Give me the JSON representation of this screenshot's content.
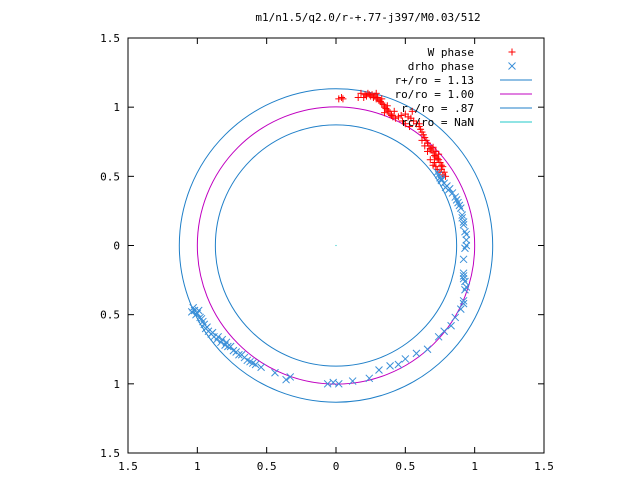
{
  "chart_data": {
    "type": "scatter",
    "title": "m1/n1.5/q2.0/r-+.77-j397/M0.03/512",
    "xlabel": "",
    "ylabel": "",
    "xlim": [
      -1.5,
      1.5
    ],
    "ylim": [
      -1.5,
      1.5
    ],
    "x_ticks": [
      -1.5,
      -1,
      -0.5,
      0,
      0.5,
      1,
      1.5
    ],
    "y_ticks": [
      -1.5,
      -1,
      -0.5,
      0,
      0.5,
      1,
      1.5
    ],
    "x_tick_labels": [
      "1.5",
      "1",
      "0.5",
      "0",
      "0.5",
      "1",
      "1.5"
    ],
    "y_tick_labels": [
      "1.5",
      "1",
      "0.5",
      "0",
      "0.5",
      "1",
      "1.5"
    ],
    "grid": false,
    "legend_position": "top-right",
    "series": [
      {
        "name": "W phase",
        "marker": "+",
        "color": "#ff0000",
        "points": [
          [
            0.02,
            1.06
          ],
          [
            0.04,
            1.07
          ],
          [
            0.05,
            1.06
          ],
          [
            0.16,
            1.07
          ],
          [
            0.18,
            1.1
          ],
          [
            0.2,
            1.07
          ],
          [
            0.21,
            1.09
          ],
          [
            0.22,
            1.08
          ],
          [
            0.23,
            1.1
          ],
          [
            0.24,
            1.09
          ],
          [
            0.25,
            1.08
          ],
          [
            0.26,
            1.09
          ],
          [
            0.27,
            1.07
          ],
          [
            0.28,
            1.08
          ],
          [
            0.29,
            1.06
          ],
          [
            0.3,
            1.07
          ],
          [
            0.31,
            1.05
          ],
          [
            0.32,
            1.04
          ],
          [
            0.33,
            1.03
          ],
          [
            0.34,
            1.02
          ],
          [
            0.35,
            1.0
          ],
          [
            0.36,
            0.99
          ],
          [
            0.37,
            0.98
          ],
          [
            0.38,
            0.97
          ],
          [
            0.39,
            0.95
          ],
          [
            0.4,
            0.94
          ],
          [
            0.41,
            0.93
          ],
          [
            0.43,
            0.92
          ],
          [
            0.45,
            0.93
          ],
          [
            0.47,
            0.94
          ],
          [
            0.5,
            0.95
          ],
          [
            0.52,
            0.93
          ],
          [
            0.54,
            0.92
          ],
          [
            0.56,
            0.9
          ],
          [
            0.58,
            0.88
          ],
          [
            0.6,
            0.86
          ],
          [
            0.61,
            0.84
          ],
          [
            0.62,
            0.82
          ],
          [
            0.63,
            0.8
          ],
          [
            0.64,
            0.78
          ],
          [
            0.65,
            0.76
          ],
          [
            0.66,
            0.74
          ],
          [
            0.67,
            0.72
          ],
          [
            0.68,
            0.7
          ],
          [
            0.69,
            0.69
          ],
          [
            0.7,
            0.67
          ],
          [
            0.71,
            0.65
          ],
          [
            0.72,
            0.64
          ],
          [
            0.73,
            0.63
          ],
          [
            0.74,
            0.62
          ],
          [
            0.75,
            0.6
          ],
          [
            0.76,
            0.58
          ],
          [
            0.77,
            0.57
          ],
          [
            0.7,
            0.71
          ],
          [
            0.72,
            0.68
          ],
          [
            0.74,
            0.66
          ],
          [
            0.66,
            0.68
          ],
          [
            0.68,
            0.62
          ],
          [
            0.7,
            0.58
          ],
          [
            0.73,
            0.55
          ],
          [
            0.75,
            0.53
          ],
          [
            0.77,
            0.51
          ],
          [
            0.6,
            0.88
          ],
          [
            0.55,
            0.97
          ],
          [
            0.48,
            0.9
          ],
          [
            0.42,
            0.97
          ],
          [
            0.37,
            1.01
          ],
          [
            0.33,
            1.06
          ],
          [
            0.29,
            1.1
          ],
          [
            0.35,
            0.96
          ],
          [
            0.5,
            0.88
          ],
          [
            0.53,
            0.86
          ],
          [
            0.62,
            0.76
          ],
          [
            0.64,
            0.72
          ],
          [
            0.71,
            0.6
          ],
          [
            0.72,
            0.57
          ],
          [
            0.76,
            0.55
          ],
          [
            0.78,
            0.53
          ],
          [
            0.79,
            0.5
          ]
        ]
      },
      {
        "name": "drho phase",
        "marker": "x",
        "color": "#3a8fd8",
        "points": [
          [
            0.73,
            0.53
          ],
          [
            0.74,
            0.51
          ],
          [
            0.75,
            0.49
          ],
          [
            0.76,
            0.47
          ],
          [
            0.78,
            0.45
          ],
          [
            0.8,
            0.43
          ],
          [
            0.82,
            0.41
          ],
          [
            0.84,
            0.38
          ],
          [
            0.86,
            0.35
          ],
          [
            0.88,
            0.31
          ],
          [
            0.9,
            0.27
          ],
          [
            0.91,
            0.22
          ],
          [
            0.92,
            0.17
          ],
          [
            0.93,
            0.1
          ],
          [
            0.94,
            0.04
          ],
          [
            0.93,
            -0.02
          ],
          [
            0.92,
            -0.1
          ],
          [
            0.92,
            -0.2
          ],
          [
            0.93,
            -0.26
          ],
          [
            0.93,
            -0.32
          ],
          [
            0.92,
            -0.4
          ],
          [
            0.9,
            -0.46
          ],
          [
            0.86,
            -0.52
          ],
          [
            0.83,
            -0.58
          ],
          [
            0.78,
            -0.62
          ],
          [
            0.74,
            -0.66
          ],
          [
            0.66,
            -0.75
          ],
          [
            0.58,
            -0.78
          ],
          [
            0.5,
            -0.82
          ],
          [
            0.45,
            -0.86
          ],
          [
            0.39,
            -0.87
          ],
          [
            0.31,
            -0.9
          ],
          [
            0.24,
            -0.96
          ],
          [
            0.12,
            -0.98
          ],
          [
            0.02,
            -1.0
          ],
          [
            -0.02,
            -0.99
          ],
          [
            -0.06,
            -1.0
          ],
          [
            -0.33,
            -0.95
          ],
          [
            -0.36,
            -0.97
          ],
          [
            -0.44,
            -0.92
          ],
          [
            -0.54,
            -0.88
          ],
          [
            -0.58,
            -0.86
          ],
          [
            -0.62,
            -0.84
          ],
          [
            -0.66,
            -0.81
          ],
          [
            -0.7,
            -0.79
          ],
          [
            -0.74,
            -0.76
          ],
          [
            -0.78,
            -0.73
          ],
          [
            -0.8,
            -0.72
          ],
          [
            -0.83,
            -0.7
          ],
          [
            -0.86,
            -0.68
          ],
          [
            -0.88,
            -0.66
          ],
          [
            -0.9,
            -0.64
          ],
          [
            -0.92,
            -0.62
          ],
          [
            -0.94,
            -0.6
          ],
          [
            -0.95,
            -0.57
          ],
          [
            -0.96,
            -0.55
          ],
          [
            -0.98,
            -0.52
          ],
          [
            -1.0,
            -0.49
          ],
          [
            -1.02,
            -0.47
          ],
          [
            -1.03,
            -0.45
          ],
          [
            -1.04,
            -0.48
          ],
          [
            -1.01,
            -0.5
          ],
          [
            -0.99,
            -0.47
          ],
          [
            -0.97,
            -0.53
          ],
          [
            -0.93,
            -0.59
          ],
          [
            -0.89,
            -0.63
          ],
          [
            -0.85,
            -0.66
          ],
          [
            -0.82,
            -0.68
          ],
          [
            -0.79,
            -0.7
          ],
          [
            -0.76,
            -0.73
          ],
          [
            -0.72,
            -0.77
          ],
          [
            -0.68,
            -0.79
          ],
          [
            -0.64,
            -0.83
          ],
          [
            -0.6,
            -0.85
          ],
          [
            0.76,
            0.48
          ],
          [
            0.79,
            0.42
          ],
          [
            0.81,
            0.4
          ],
          [
            0.87,
            0.33
          ],
          [
            0.89,
            0.29
          ],
          [
            0.91,
            0.2
          ],
          [
            0.92,
            0.15
          ],
          [
            0.94,
            0.08
          ],
          [
            0.94,
            0.0
          ],
          [
            0.92,
            -0.22
          ],
          [
            0.92,
            -0.24
          ],
          [
            0.94,
            -0.3
          ],
          [
            0.92,
            -0.42
          ]
        ]
      },
      {
        "name": "r+/ro = 1.13",
        "type": "circle",
        "radius": 1.13,
        "color": "#1f7fc8"
      },
      {
        "name": "ro/ro = 1.00",
        "type": "circle",
        "radius": 1.0,
        "color": "#c000c0"
      },
      {
        "name": "r-/ro = .87",
        "type": "circle",
        "radius": 0.87,
        "color": "#1f7fc8"
      },
      {
        "name": "rc/ro = NaN",
        "type": "circle",
        "radius": null,
        "color": "#22c8c8"
      }
    ]
  }
}
